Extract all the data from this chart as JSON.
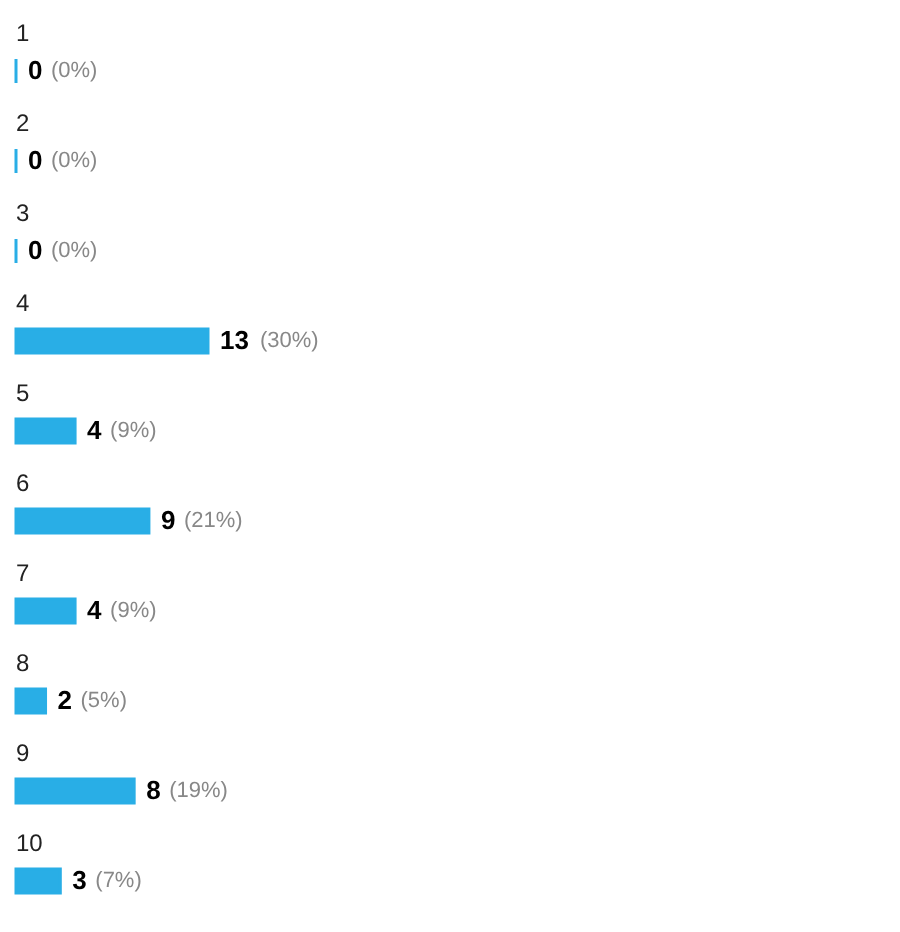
{
  "chart_data": {
    "type": "bar",
    "orientation": "horizontal",
    "categories": [
      "1",
      "2",
      "3",
      "4",
      "5",
      "6",
      "7",
      "8",
      "9",
      "10"
    ],
    "values": [
      0,
      0,
      0,
      13,
      4,
      9,
      4,
      2,
      8,
      3
    ],
    "data_labels": true,
    "tick_labels": "y",
    "annotations": [
      {
        "text": "(0%)",
        "x": 0,
        "y": "1"
      },
      {
        "text": "(0%)",
        "x": 0,
        "y": "2"
      },
      {
        "text": "(0%)",
        "x": 0,
        "y": "3"
      },
      {
        "text": "(30%)",
        "x": 13,
        "y": "4"
      },
      {
        "text": "(9%)",
        "x": 4,
        "y": "5"
      },
      {
        "text": "(21%)",
        "x": 9,
        "y": "6"
      },
      {
        "text": "(9%)",
        "x": 4,
        "y": "7"
      },
      {
        "text": "(5%)",
        "x": 2,
        "y": "8"
      },
      {
        "text": "(19%)",
        "x": 8,
        "y": "9"
      },
      {
        "text": "(7%)",
        "x": 3,
        "y": "10"
      }
    ],
    "color": "#29aee6"
  }
}
